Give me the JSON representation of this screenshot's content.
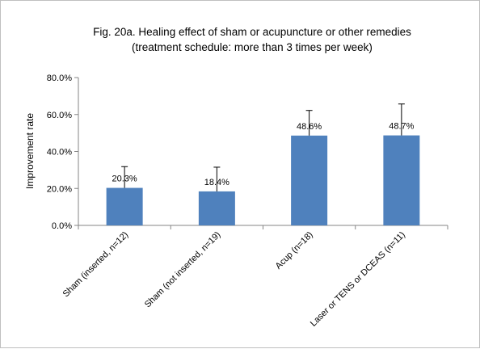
{
  "chart_data": {
    "type": "bar",
    "title_line1": "Fig. 20a.  Healing  effect of sham or acupuncture or other remedies",
    "title_line2": "(treatment schedule: more than 3 times per week)",
    "ylabel": "Improvement rate",
    "xlabel": "",
    "ylim": [
      0,
      80
    ],
    "yticks": [
      "0.0%",
      "20.0%",
      "40.0%",
      "60.0%",
      "80.0%"
    ],
    "categories": [
      "Sham (inserted,  n=12)",
      "Sham (not inserted,  n=19)",
      "Acup (n=18)",
      "Laser or TENS or DCEAS (n=11)"
    ],
    "values": [
      20.3,
      18.4,
      48.6,
      48.7
    ],
    "data_labels": [
      "20.3%",
      "18.4%",
      "48.6%",
      "48.7%"
    ],
    "error_upper": [
      31.8,
      31.5,
      62.2,
      65.7
    ],
    "bar_color": "#4f81bd",
    "grid": false,
    "legend": "none"
  }
}
